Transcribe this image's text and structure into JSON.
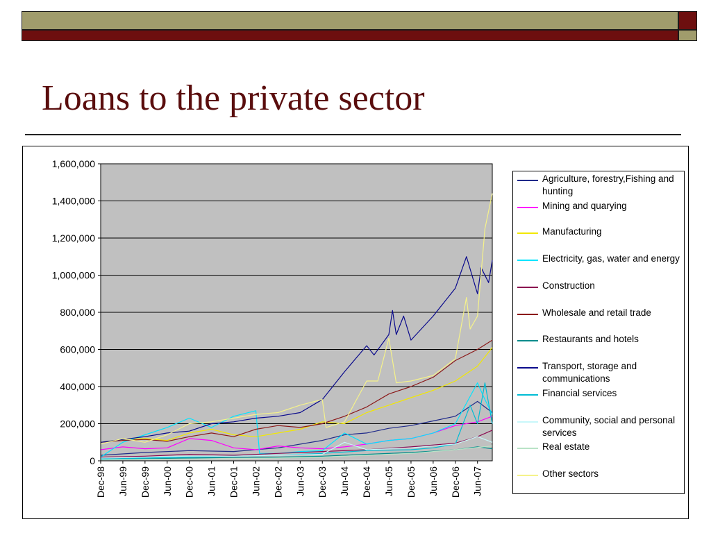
{
  "slide": {
    "title": "Loans to the private sector"
  },
  "colors": {
    "header_olive": "#a09c6c",
    "header_maroon": "#6d0f0f",
    "title_color": "#5a0d0d",
    "plot_background": "#c0c0c0"
  },
  "chart_data": {
    "type": "line",
    "title": "",
    "xlabel": "",
    "ylabel": "",
    "ylim": [
      0,
      1600000
    ],
    "yticks": [
      "0",
      "200,000",
      "400,000",
      "600,000",
      "800,000",
      "1,000,000",
      "1,200,000",
      "1,400,000",
      "1,600,000"
    ],
    "x_tick_labels": [
      "Dec-98",
      "Jun-99",
      "Dec-99",
      "Jun-00",
      "Dec-00",
      "Jun-01",
      "Dec-01",
      "Jun-02",
      "Dec-02",
      "Jun-03",
      "Dec-03",
      "Jun-04",
      "Dec-04",
      "Jun-05",
      "Dec-05",
      "Jun-06",
      "Dec-06",
      "Jun-07"
    ],
    "x_range": [
      "Dec-98",
      "Oct-07"
    ],
    "grid": "horizontal",
    "legend_position": "right",
    "series": [
      {
        "name": "Agriculture, forestry,Fishing and hunting",
        "color": "#1f2a8a",
        "points": [
          [
            "Dec-98",
            30000
          ],
          [
            "Dec-99",
            45000
          ],
          [
            "Dec-00",
            55000
          ],
          [
            "Dec-01",
            50000
          ],
          [
            "Dec-02",
            70000
          ],
          [
            "Dec-03",
            110000
          ],
          [
            "Jun-04",
            140000
          ],
          [
            "Dec-04",
            150000
          ],
          [
            "Jun-05",
            175000
          ],
          [
            "Dec-05",
            190000
          ],
          [
            "Jun-06",
            215000
          ],
          [
            "Dec-06",
            240000
          ],
          [
            "Jun-07",
            320000
          ],
          [
            "Oct-07",
            260000
          ]
        ]
      },
      {
        "name": "Mining  and quarying",
        "color": "#ff00ff",
        "points": [
          [
            "Dec-98",
            60000
          ],
          [
            "Jun-99",
            75000
          ],
          [
            "Dec-99",
            65000
          ],
          [
            "Jun-00",
            70000
          ],
          [
            "Dec-00",
            120000
          ],
          [
            "Jun-01",
            110000
          ],
          [
            "Dec-01",
            70000
          ],
          [
            "Jun-02",
            60000
          ],
          [
            "Dec-02",
            80000
          ],
          [
            "Jun-03",
            70000
          ],
          [
            "Dec-03",
            65000
          ],
          [
            "Jun-04",
            75000
          ],
          [
            "Dec-04",
            90000
          ],
          [
            "Jun-05",
            110000
          ],
          [
            "Dec-05",
            120000
          ],
          [
            "Jun-06",
            150000
          ],
          [
            "Dec-06",
            190000
          ],
          [
            "Jun-07",
            210000
          ],
          [
            "Oct-07",
            240000
          ]
        ]
      },
      {
        "name": "Manufacturing",
        "color": "#f2e800",
        "points": [
          [
            "Dec-98",
            100000
          ],
          [
            "Jun-99",
            115000
          ],
          [
            "Dec-99",
            120000
          ],
          [
            "Jun-00",
            110000
          ],
          [
            "Dec-00",
            150000
          ],
          [
            "Jun-01",
            170000
          ],
          [
            "Dec-01",
            140000
          ],
          [
            "Jun-02",
            130000
          ],
          [
            "Dec-02",
            150000
          ],
          [
            "Jun-03",
            170000
          ],
          [
            "Dec-03",
            210000
          ],
          [
            "Jun-04",
            200000
          ],
          [
            "Dec-04",
            260000
          ],
          [
            "Jun-05",
            300000
          ],
          [
            "Dec-05",
            340000
          ],
          [
            "Jun-06",
            380000
          ],
          [
            "Dec-06",
            430000
          ],
          [
            "Jun-07",
            510000
          ],
          [
            "Oct-07",
            610000
          ]
        ]
      },
      {
        "name": "Electricity, gas, water and energy",
        "color": "#00e5ff",
        "points": [
          [
            "Dec-98",
            20000
          ],
          [
            "Jun-99",
            100000
          ],
          [
            "Dec-99",
            140000
          ],
          [
            "Jun-00",
            180000
          ],
          [
            "Dec-00",
            230000
          ],
          [
            "Jun-01",
            180000
          ],
          [
            "Dec-01",
            240000
          ],
          [
            "Jun-02",
            270000
          ],
          [
            "Jul-02",
            40000
          ],
          [
            "Dec-02",
            40000
          ],
          [
            "Jun-03",
            50000
          ],
          [
            "Dec-03",
            55000
          ],
          [
            "Jun-04",
            150000
          ],
          [
            "Dec-04",
            90000
          ],
          [
            "Jun-05",
            110000
          ],
          [
            "Dec-05",
            120000
          ],
          [
            "Jun-06",
            150000
          ],
          [
            "Dec-06",
            200000
          ],
          [
            "Jun-07",
            420000
          ],
          [
            "Aug-07",
            330000
          ],
          [
            "Oct-07",
            250000
          ]
        ]
      },
      {
        "name": "Construction",
        "color": "#8b0a50",
        "points": [
          [
            "Dec-98",
            20000
          ],
          [
            "Dec-99",
            25000
          ],
          [
            "Dec-00",
            35000
          ],
          [
            "Dec-01",
            30000
          ],
          [
            "Dec-02",
            40000
          ],
          [
            "Dec-03",
            50000
          ],
          [
            "Dec-04",
            60000
          ],
          [
            "Dec-05",
            75000
          ],
          [
            "Dec-06",
            95000
          ],
          [
            "Jun-07",
            130000
          ],
          [
            "Oct-07",
            165000
          ]
        ]
      },
      {
        "name": "Wholesale and retail trade",
        "color": "#8b1a1a",
        "points": [
          [
            "Dec-98",
            100000
          ],
          [
            "Jun-99",
            110000
          ],
          [
            "Dec-99",
            115000
          ],
          [
            "Jun-00",
            105000
          ],
          [
            "Dec-00",
            130000
          ],
          [
            "Jun-01",
            150000
          ],
          [
            "Dec-01",
            130000
          ],
          [
            "Jun-02",
            170000
          ],
          [
            "Dec-02",
            190000
          ],
          [
            "Jun-03",
            180000
          ],
          [
            "Dec-03",
            200000
          ],
          [
            "Jun-04",
            240000
          ],
          [
            "Dec-04",
            290000
          ],
          [
            "Jun-05",
            360000
          ],
          [
            "Dec-05",
            400000
          ],
          [
            "Jun-06",
            450000
          ],
          [
            "Dec-06",
            540000
          ],
          [
            "Jun-07",
            600000
          ],
          [
            "Oct-07",
            650000
          ]
        ]
      },
      {
        "name": "Restaurants and hotels",
        "color": "#008b8b",
        "points": [
          [
            "Dec-98",
            10000
          ],
          [
            "Dec-99",
            12000
          ],
          [
            "Dec-00",
            15000
          ],
          [
            "Dec-01",
            18000
          ],
          [
            "Dec-02",
            20000
          ],
          [
            "Dec-03",
            25000
          ],
          [
            "Dec-04",
            35000
          ],
          [
            "Dec-05",
            45000
          ],
          [
            "Dec-06",
            60000
          ],
          [
            "Jun-07",
            75000
          ],
          [
            "Oct-07",
            65000
          ]
        ]
      },
      {
        "name": "Transport, storage and communications",
        "color": "#0a0a8c",
        "points": [
          [
            "Dec-98",
            100000
          ],
          [
            "Jun-99",
            115000
          ],
          [
            "Dec-99",
            130000
          ],
          [
            "Jun-00",
            150000
          ],
          [
            "Dec-00",
            160000
          ],
          [
            "Jun-01",
            200000
          ],
          [
            "Dec-01",
            210000
          ],
          [
            "Jun-02",
            230000
          ],
          [
            "Dec-02",
            240000
          ],
          [
            "Jun-03",
            260000
          ],
          [
            "Dec-03",
            330000
          ],
          [
            "Jun-04",
            480000
          ],
          [
            "Dec-04",
            620000
          ],
          [
            "Feb-05",
            570000
          ],
          [
            "Jun-05",
            680000
          ],
          [
            "Jul-05",
            810000
          ],
          [
            "Aug-05",
            680000
          ],
          [
            "Oct-05",
            780000
          ],
          [
            "Dec-05",
            650000
          ],
          [
            "Jun-06",
            780000
          ],
          [
            "Dec-06",
            930000
          ],
          [
            "Mar-07",
            1100000
          ],
          [
            "Jun-07",
            900000
          ],
          [
            "Jul-07",
            1040000
          ],
          [
            "Sep-07",
            960000
          ],
          [
            "Oct-07",
            1080000
          ]
        ]
      },
      {
        "name": "Financial services",
        "color": "#00bcd4",
        "points": [
          [
            "Dec-98",
            10000
          ],
          [
            "Dec-99",
            15000
          ],
          [
            "Dec-00",
            20000
          ],
          [
            "Dec-01",
            25000
          ],
          [
            "Dec-02",
            30000
          ],
          [
            "Dec-03",
            40000
          ],
          [
            "Dec-04",
            55000
          ],
          [
            "Dec-05",
            60000
          ],
          [
            "Jun-06",
            70000
          ],
          [
            "Dec-06",
            90000
          ],
          [
            "Apr-07",
            300000
          ],
          [
            "Jun-07",
            200000
          ],
          [
            "Aug-07",
            420000
          ],
          [
            "Oct-07",
            200000
          ]
        ]
      },
      {
        "name": "Community, social and personal services",
        "color": "#c8f7fa",
        "points": [
          [
            "Dec-98",
            15000
          ],
          [
            "Dec-99",
            20000
          ],
          [
            "Dec-00",
            25000
          ],
          [
            "Dec-01",
            25000
          ],
          [
            "Dec-02",
            30000
          ],
          [
            "Dec-03",
            35000
          ],
          [
            "Jun-04",
            100000
          ],
          [
            "Dec-04",
            60000
          ],
          [
            "Dec-05",
            70000
          ],
          [
            "Dec-06",
            90000
          ],
          [
            "Jun-07",
            130000
          ],
          [
            "Oct-07",
            100000
          ]
        ]
      },
      {
        "name": "Real estate",
        "color": "#b9e3c6",
        "points": [
          [
            "Dec-98",
            5000
          ],
          [
            "Dec-99",
            8000
          ],
          [
            "Dec-00",
            10000
          ],
          [
            "Dec-01",
            12000
          ],
          [
            "Dec-02",
            15000
          ],
          [
            "Dec-03",
            20000
          ],
          [
            "Dec-04",
            30000
          ],
          [
            "Dec-05",
            40000
          ],
          [
            "Dec-06",
            60000
          ],
          [
            "Oct-07",
            80000
          ]
        ]
      },
      {
        "name": "Other sectors",
        "color": "#f5f28a",
        "points": [
          [
            "Dec-98",
            90000
          ],
          [
            "Jun-99",
            120000
          ],
          [
            "Dec-99",
            100000
          ],
          [
            "Jun-00",
            140000
          ],
          [
            "Dec-00",
            200000
          ],
          [
            "Jun-01",
            210000
          ],
          [
            "Dec-01",
            230000
          ],
          [
            "Jun-02",
            250000
          ],
          [
            "Dec-02",
            260000
          ],
          [
            "Jun-03",
            300000
          ],
          [
            "Dec-03",
            330000
          ],
          [
            "Jan-04",
            180000
          ],
          [
            "Jun-04",
            210000
          ],
          [
            "Dec-04",
            430000
          ],
          [
            "Mar-05",
            430000
          ],
          [
            "Jun-05",
            660000
          ],
          [
            "Aug-05",
            420000
          ],
          [
            "Dec-05",
            430000
          ],
          [
            "Jun-06",
            460000
          ],
          [
            "Dec-06",
            550000
          ],
          [
            "Mar-07",
            880000
          ],
          [
            "Apr-07",
            710000
          ],
          [
            "Jun-07",
            780000
          ],
          [
            "Aug-07",
            1250000
          ],
          [
            "Oct-07",
            1440000
          ]
        ]
      }
    ]
  }
}
